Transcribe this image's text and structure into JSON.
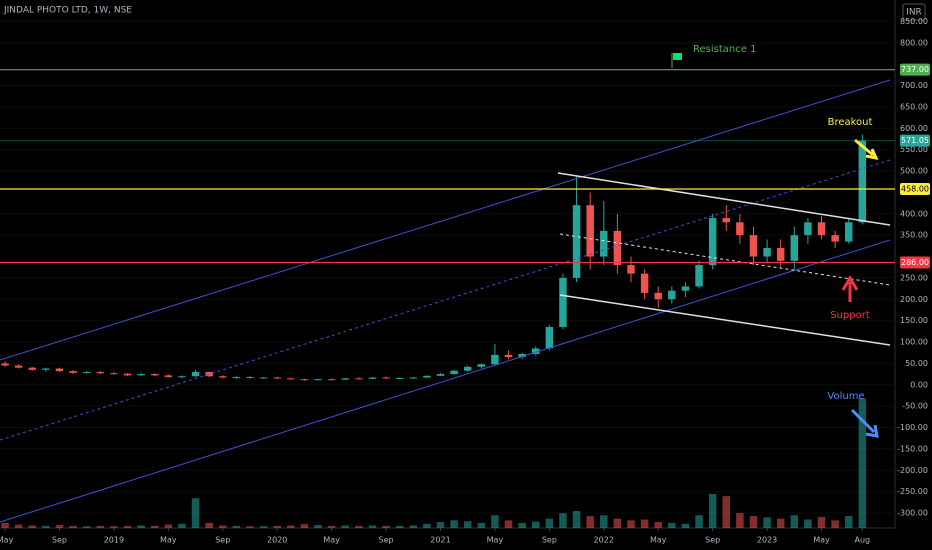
{
  "header": {
    "title": "JINDAL PHOTO LTD, 1W, NSE",
    "currency": "INR"
  },
  "chart_data": {
    "type": "candlestick",
    "open": [
      50,
      45,
      40,
      35,
      38,
      32,
      28,
      30,
      27,
      26,
      22,
      25,
      22,
      18,
      20,
      30,
      20,
      17,
      18,
      16,
      17,
      15,
      13,
      11,
      13,
      12,
      15,
      14,
      17,
      15,
      16,
      17,
      21,
      25,
      33,
      42,
      48,
      70,
      65,
      72,
      85,
      135,
      250,
      420,
      300,
      360,
      280,
      260,
      215,
      200,
      220,
      230,
      280,
      390,
      380,
      350,
      300,
      320,
      290,
      350,
      380,
      350,
      335,
      380
    ],
    "high": [
      55,
      48,
      42,
      40,
      40,
      34,
      32,
      32,
      30,
      27,
      28,
      27,
      24,
      22,
      35,
      31,
      22,
      20,
      20,
      18,
      19,
      17,
      14,
      14,
      15,
      16,
      18,
      18,
      19,
      17,
      18,
      22,
      27,
      35,
      45,
      50,
      95,
      80,
      75,
      90,
      140,
      260,
      490,
      450,
      430,
      400,
      300,
      270,
      230,
      230,
      240,
      290,
      400,
      420,
      400,
      370,
      340,
      340,
      370,
      390,
      395,
      360,
      390,
      585
    ],
    "low": [
      42,
      38,
      33,
      30,
      30,
      25,
      26,
      25,
      24,
      20,
      21,
      20,
      17,
      15,
      18,
      18,
      15,
      14,
      15,
      14,
      14,
      12,
      9,
      10,
      11,
      11,
      13,
      13,
      14,
      13,
      14,
      16,
      20,
      24,
      30,
      38,
      46,
      60,
      60,
      68,
      80,
      130,
      240,
      270,
      280,
      260,
      240,
      200,
      180,
      190,
      205,
      225,
      270,
      360,
      330,
      280,
      285,
      275,
      270,
      330,
      340,
      320,
      330,
      375
    ],
    "close": [
      45,
      40,
      35,
      38,
      32,
      28,
      30,
      27,
      26,
      22,
      25,
      22,
      18,
      20,
      30,
      20,
      17,
      18,
      16,
      17,
      15,
      13,
      11,
      13,
      12,
      15,
      14,
      17,
      15,
      16,
      17,
      21,
      25,
      33,
      42,
      48,
      70,
      65,
      72,
      85,
      135,
      250,
      420,
      300,
      360,
      280,
      260,
      215,
      200,
      220,
      230,
      280,
      390,
      380,
      350,
      300,
      320,
      290,
      350,
      380,
      350,
      335,
      380,
      571.05
    ],
    "volume": [
      12,
      8,
      6,
      5,
      7,
      5,
      4,
      5,
      4,
      5,
      6,
      5,
      8,
      10,
      70,
      12,
      6,
      5,
      4,
      4,
      5,
      6,
      9,
      7,
      5,
      6,
      5,
      6,
      5,
      5,
      6,
      10,
      14,
      18,
      16,
      12,
      30,
      18,
      12,
      15,
      22,
      35,
      40,
      28,
      30,
      22,
      18,
      20,
      14,
      12,
      10,
      30,
      80,
      75,
      35,
      28,
      25,
      22,
      30,
      20,
      26,
      18,
      28,
      305
    ],
    "volume_lim": [
      0,
      400
    ],
    "up_color": "#26a69a",
    "down_color": "#ef5350",
    "xlim": [
      -0.37,
      65.4
    ],
    "xticks": [
      {
        "value": 0,
        "label": "May"
      },
      {
        "value": 4,
        "label": "Sep"
      },
      {
        "value": 8,
        "label": "2019"
      },
      {
        "value": 12,
        "label": "May"
      },
      {
        "value": 16,
        "label": "Sep"
      },
      {
        "value": 20,
        "label": "2020"
      },
      {
        "value": 24,
        "label": "May"
      },
      {
        "value": 28,
        "label": "Sep"
      },
      {
        "value": 32,
        "label": "2021"
      },
      {
        "value": 36,
        "label": "May"
      },
      {
        "value": 40,
        "label": "Sep"
      },
      {
        "value": 44,
        "label": "2022"
      },
      {
        "value": 48,
        "label": "May"
      },
      {
        "value": 52,
        "label": "Sep"
      },
      {
        "value": 56,
        "label": "2023"
      },
      {
        "value": 60,
        "label": "May"
      },
      {
        "value": 63,
        "label": "Aug"
      }
    ],
    "ylim": [
      -335,
      900
    ],
    "yticks": [
      {
        "value": 850,
        "label": "850.00"
      },
      {
        "value": 800,
        "label": "800.00"
      },
      {
        "value": 700,
        "label": "700.00"
      },
      {
        "value": 650,
        "label": "650.00"
      },
      {
        "value": 600,
        "label": "600.00"
      },
      {
        "value": 550,
        "label": "550.00"
      },
      {
        "value": 500,
        "label": "500.00"
      },
      {
        "value": 400,
        "label": "400.00"
      },
      {
        "value": 350,
        "label": "350.00"
      },
      {
        "value": 250,
        "label": "250.00"
      },
      {
        "value": 200,
        "label": "200.00"
      },
      {
        "value": 150,
        "label": "150.00"
      },
      {
        "value": 100,
        "label": "100.00"
      },
      {
        "value": 50,
        "label": "50.00"
      },
      {
        "value": 0,
        "label": "0.00"
      },
      {
        "value": -50,
        "label": "-50.00"
      },
      {
        "value": -100,
        "label": "-100.00"
      },
      {
        "value": -150,
        "label": "-150.00"
      },
      {
        "value": -200,
        "label": "-200.00"
      },
      {
        "value": -250,
        "label": "-250.00"
      },
      {
        "value": -300,
        "label": "-300.00"
      }
    ],
    "levels": [
      {
        "value": 737,
        "label": "737.00",
        "color": "#4caf50"
      },
      {
        "value": 571.05,
        "label": "571.05",
        "color": "#26a69a"
      },
      {
        "value": 458,
        "label": "458.00",
        "color": "#ffeb3b"
      },
      {
        "value": 286,
        "label": "286.00",
        "color": "#f23645"
      }
    ],
    "annotations": {
      "resistance": "Resistance 1",
      "breakout": "Breakout",
      "support": "Support",
      "volume": "Volume"
    }
  }
}
